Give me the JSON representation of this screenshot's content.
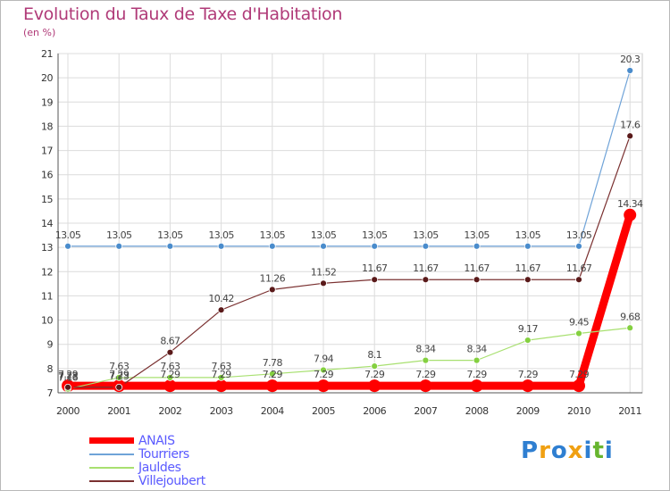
{
  "title": "Evolution du Taux de Taxe d'Habitation",
  "subtitle": "(en %)",
  "brand": {
    "letters": [
      "P",
      "r",
      "o",
      "x",
      "i",
      "t",
      "i"
    ],
    "colors": [
      "#2f7fd1",
      "#f0a012",
      "#2f7fd1",
      "#f0a012",
      "#2f7fd1",
      "#67b52f",
      "#2f7fd1"
    ]
  },
  "chart_data": {
    "type": "line",
    "x": [
      "2000",
      "2001",
      "2002",
      "2003",
      "2004",
      "2005",
      "2006",
      "2007",
      "2008",
      "2009",
      "2010",
      "2011"
    ],
    "ylim": [
      7,
      21
    ],
    "yticks": [
      "7",
      "8",
      "9",
      "10",
      "11",
      "12",
      "13",
      "14",
      "15",
      "16",
      "17",
      "18",
      "19",
      "20",
      "21"
    ],
    "grid": true,
    "series": [
      {
        "name": "ANAIS",
        "color": "#ff0000",
        "values": [
          7.29,
          7.29,
          7.29,
          7.29,
          7.29,
          7.29,
          7.29,
          7.29,
          7.29,
          7.29,
          7.29,
          14.34
        ],
        "labels": [
          "7.29",
          "7.29",
          "7.29",
          "7.29",
          "7.29",
          "7.29",
          "7.29",
          "7.29",
          "7.29",
          "7.29",
          "7.29",
          "14.34"
        ]
      },
      {
        "name": "Tourriers",
        "color": "#6fa3d8",
        "values": [
          13.05,
          13.05,
          13.05,
          13.05,
          13.05,
          13.05,
          13.05,
          13.05,
          13.05,
          13.05,
          13.05,
          20.3
        ],
        "labels": [
          "13.05",
          "13.05",
          "13.05",
          "13.05",
          "13.05",
          "13.05",
          "13.05",
          "13.05",
          "13.05",
          "13.05",
          "13.05",
          "20.3"
        ]
      },
      {
        "name": "Jauldes",
        "color": "#a8e070",
        "values": [
          7.16,
          7.63,
          7.63,
          7.63,
          7.78,
          7.94,
          8.1,
          8.34,
          8.34,
          9.17,
          9.45,
          9.68
        ],
        "labels": [
          "7.16",
          "7.63",
          "7.63",
          "7.63",
          "7.78",
          "7.94",
          "8.1",
          "8.34",
          "8.34",
          "9.17",
          "9.45",
          "9.68"
        ]
      },
      {
        "name": "Villejoubert",
        "color": "#7a3030",
        "values": [
          7.23,
          7.23,
          8.67,
          10.42,
          11.26,
          11.52,
          11.67,
          11.67,
          11.67,
          11.67,
          11.67,
          17.6
        ],
        "labels": [
          "7.23",
          "7.23",
          "8.67",
          "10.42",
          "11.26",
          "11.52",
          "11.67",
          "11.67",
          "11.67",
          "11.67",
          "11.67",
          "17.6"
        ]
      }
    ]
  }
}
